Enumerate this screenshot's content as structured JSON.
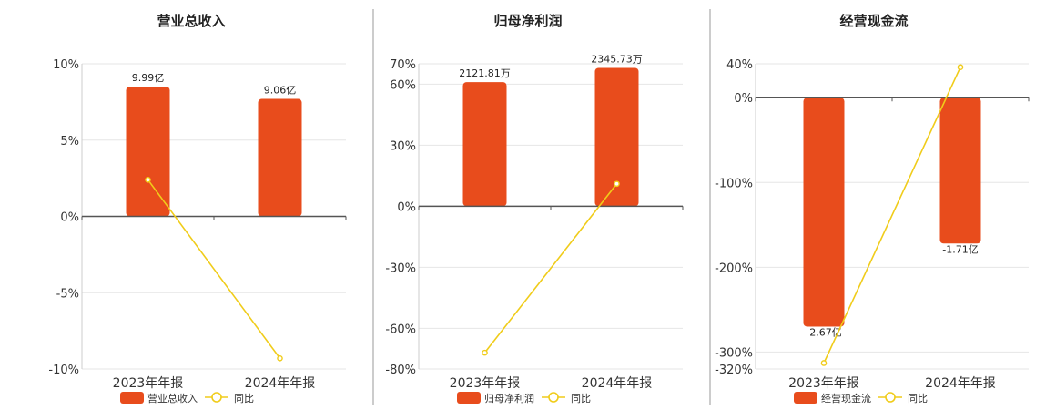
{
  "chart_data": [
    {
      "type": "bar",
      "title": "营业总收入",
      "categories": [
        "2023年年报",
        "2024年年报"
      ],
      "series": [
        {
          "name": "营业总收入",
          "type": "bar",
          "values": [
            8.5,
            7.7
          ],
          "labels": [
            "9.99亿",
            "9.06亿"
          ]
        },
        {
          "name": "同比",
          "type": "line",
          "values": [
            2.4,
            -9.3
          ]
        }
      ],
      "y_ticks": [
        "10%",
        "5%",
        "0%",
        "-5%",
        "-10%"
      ],
      "y_tick_values": [
        10,
        5,
        0,
        -5,
        -10
      ],
      "ylim": [
        -10,
        10
      ],
      "grid": true,
      "legend": "bottom",
      "colors": {
        "bar": "#e84c1c",
        "line": "#f0cc1a"
      }
    },
    {
      "type": "bar",
      "title": "归母净利润",
      "categories": [
        "2023年年报",
        "2024年年报"
      ],
      "series": [
        {
          "name": "归母净利润",
          "type": "bar",
          "values": [
            61,
            68
          ],
          "labels": [
            "2121.81万",
            "2345.73万"
          ]
        },
        {
          "name": "同比",
          "type": "line",
          "values": [
            -72,
            11
          ]
        }
      ],
      "y_ticks": [
        "70%",
        "60%",
        "30%",
        "0%",
        "-30%",
        "-60%",
        "-80%"
      ],
      "y_tick_values": [
        70,
        60,
        30,
        0,
        -30,
        -60,
        -80
      ],
      "ylim": [
        -80,
        70
      ],
      "grid": true,
      "legend": "bottom",
      "colors": {
        "bar": "#e84c1c",
        "line": "#f0cc1a"
      }
    },
    {
      "type": "bar",
      "title": "经营现金流",
      "categories": [
        "2023年年报",
        "2024年年报"
      ],
      "series": [
        {
          "name": "经营现金流",
          "type": "bar",
          "values": [
            -270,
            -172
          ],
          "labels": [
            "-2.67亿",
            "-1.71亿"
          ]
        },
        {
          "name": "同比",
          "type": "line",
          "values": [
            -313,
            36
          ]
        }
      ],
      "y_ticks": [
        "40%",
        "0%",
        "-100%",
        "-200%",
        "-300%",
        "-320%"
      ],
      "y_tick_values": [
        40,
        0,
        -100,
        -200,
        -300,
        -320
      ],
      "ylim": [
        -320,
        40
      ],
      "grid": true,
      "legend": "bottom",
      "colors": {
        "bar": "#e84c1c",
        "line": "#f0cc1a"
      }
    }
  ]
}
